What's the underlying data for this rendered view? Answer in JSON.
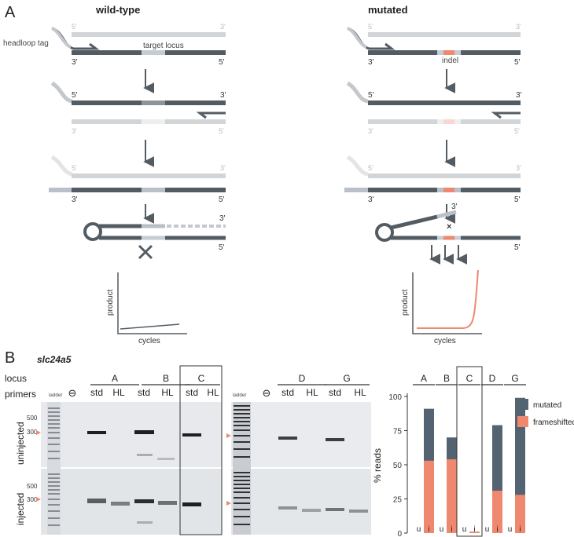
{
  "panel_a": {
    "letter": "A",
    "wt_title": "wild-type",
    "mut_title": "mutated",
    "headloop_tag": "headloop tag",
    "target_locus": "target locus",
    "indel": "indel",
    "five_prime": "5'",
    "three_prime": "3'",
    "graph_ylabel": "product",
    "graph_xlabel": "cycles"
  },
  "panel_b": {
    "letter": "B",
    "gene": "slc24a5",
    "row_locus": "locus",
    "row_primers": "primers",
    "ladder": "ladder",
    "neg_symbol": "⊖",
    "loci_left": [
      "A",
      "B",
      "C"
    ],
    "loci_right": [
      "D",
      "G"
    ],
    "primer_std": "std",
    "primer_hl": "HL",
    "uninjected": "uninjected",
    "injected": "injected",
    "bp_500": "500",
    "bp_300": "300"
  },
  "colors": {
    "mutated": "#536371",
    "frameshifted": "#ee8970",
    "strand_dark": "#545c63",
    "strand_light": "#d2d5d8",
    "gel": "#e7e9ec"
  },
  "chart_data": {
    "type": "bar",
    "categories": [
      "A",
      "B",
      "C",
      "D",
      "G"
    ],
    "subcategories": [
      "u",
      "i"
    ],
    "ylabel": "% reads",
    "yticks": [
      0,
      25,
      50,
      75,
      100
    ],
    "ylim": [
      0,
      100
    ],
    "series": [
      {
        "name": "mutated",
        "values": {
          "A": [
            0,
            91
          ],
          "B": [
            0,
            70
          ],
          "C": [
            0,
            1
          ],
          "D": [
            0,
            79
          ],
          "G": [
            0,
            99
          ]
        }
      },
      {
        "name": "frameshifted",
        "values": {
          "A": [
            0,
            53
          ],
          "B": [
            0,
            54
          ],
          "C": [
            0,
            1
          ],
          "D": [
            0,
            31
          ],
          "G": [
            0,
            28
          ]
        }
      }
    ],
    "highlighted_category": "C",
    "legend": [
      "mutated",
      "frameshifted"
    ],
    "legend_position": "right"
  }
}
